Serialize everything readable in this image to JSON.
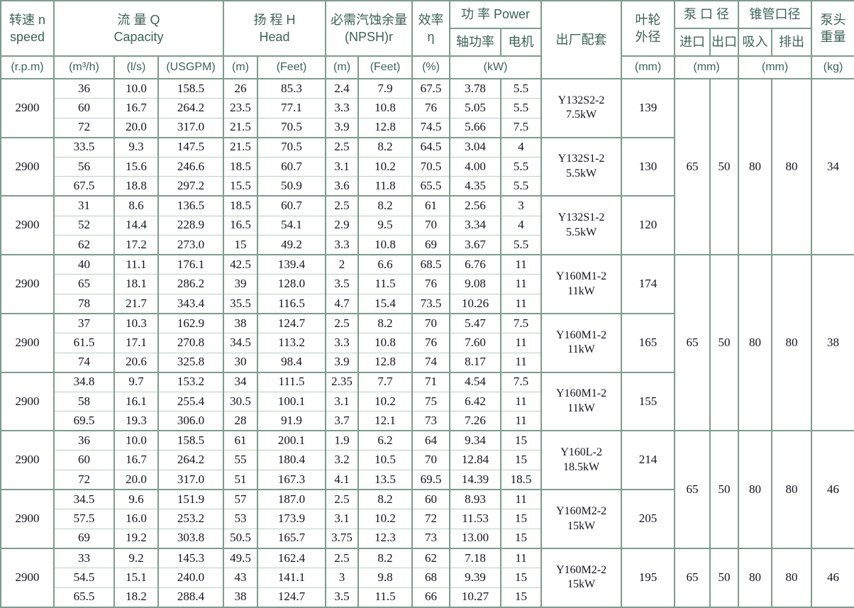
{
  "table": {
    "header": {
      "speed": {
        "line1": "转速 n",
        "line2": "speed",
        "unit": "(r.p.m)"
      },
      "capacity": {
        "line1": "流 量 Q",
        "line2": "Capacity",
        "units": [
          "(m³/h)",
          "(l/s)",
          "(USGPM)"
        ]
      },
      "head": {
        "line1": "扬 程 H",
        "line2": "Head",
        "units": [
          "(m)",
          "(Feet)"
        ]
      },
      "npsh": {
        "line1": "必需汽蚀余量",
        "line2": "(NPSH)r",
        "units": [
          "(m)",
          "(Feet)"
        ]
      },
      "efficiency": {
        "line1": "效率",
        "line2": "η",
        "unit": "(%)"
      },
      "power": {
        "label": "功 率 Power",
        "sub": [
          "轴功率",
          "电机"
        ],
        "unit": "(kW)"
      },
      "model": {
        "label": "出厂配套"
      },
      "impeller": {
        "line1": "叶轮",
        "line2": "外径",
        "unit": "(mm)"
      },
      "pump_ports": {
        "label": "泵 口 径",
        "sub": [
          "进口",
          "出口"
        ],
        "unit": "(mm)"
      },
      "cone_ports": {
        "label": "锥管口径",
        "sub": [
          "吸入",
          "排出"
        ],
        "unit": "(mm)"
      },
      "weight": {
        "line1": "泵头",
        "line2": "重量",
        "unit": "(kg)"
      }
    },
    "columns": [
      "m3h",
      "ls",
      "usgpm",
      "head_m",
      "head_feet",
      "npsh_m",
      "npsh_feet",
      "efficiency",
      "shaft_power",
      "motor_power"
    ],
    "groups": [
      {
        "speed": "2900",
        "model": [
          "Y132S2-2",
          "7.5kW"
        ],
        "impeller": "139",
        "rows": [
          [
            "36",
            "10.0",
            "158.5",
            "26",
            "85.3",
            "2.4",
            "7.9",
            "67.5",
            "3.78",
            "5.5"
          ],
          [
            "60",
            "16.7",
            "264.2",
            "23.5",
            "77.1",
            "3.3",
            "10.8",
            "76",
            "5.05",
            "5.5"
          ],
          [
            "72",
            "20.0",
            "317.0",
            "21.5",
            "70.5",
            "3.9",
            "12.8",
            "74.5",
            "5.66",
            "7.5"
          ]
        ]
      },
      {
        "speed": "2900",
        "model": [
          "Y132S1-2",
          "5.5kW"
        ],
        "impeller": "130",
        "rows": [
          [
            "33.5",
            "9.3",
            "147.5",
            "21.5",
            "70.5",
            "2.5",
            "8.2",
            "64.5",
            "3.04",
            "4"
          ],
          [
            "56",
            "15.6",
            "246.6",
            "18.5",
            "60.7",
            "3.1",
            "10.2",
            "70.5",
            "4.00",
            "5.5"
          ],
          [
            "67.5",
            "18.8",
            "297.2",
            "15.5",
            "50.9",
            "3.6",
            "11.8",
            "65.5",
            "4.35",
            "5.5"
          ]
        ]
      },
      {
        "speed": "2900",
        "model": [
          "Y132S1-2",
          "5.5kW"
        ],
        "impeller": "120",
        "rows": [
          [
            "31",
            "8.6",
            "136.5",
            "18.5",
            "60.7",
            "2.5",
            "8.2",
            "61",
            "2.56",
            "3"
          ],
          [
            "52",
            "14.4",
            "228.9",
            "16.5",
            "54.1",
            "2.9",
            "9.5",
            "70",
            "3.34",
            "4"
          ],
          [
            "62",
            "17.2",
            "273.0",
            "15",
            "49.2",
            "3.3",
            "10.8",
            "69",
            "3.67",
            "5.5"
          ]
        ]
      },
      {
        "speed": "2900",
        "model": [
          "Y160M1-2",
          "11kW"
        ],
        "impeller": "174",
        "rows": [
          [
            "40",
            "11.1",
            "176.1",
            "42.5",
            "139.4",
            "2",
            "6.6",
            "68.5",
            "6.76",
            "11"
          ],
          [
            "65",
            "18.1",
            "286.2",
            "39",
            "128.0",
            "3.5",
            "11.5",
            "76",
            "9.08",
            "11"
          ],
          [
            "78",
            "21.7",
            "343.4",
            "35.5",
            "116.5",
            "4.7",
            "15.4",
            "73.5",
            "10.26",
            "11"
          ]
        ]
      },
      {
        "speed": "2900",
        "model": [
          "Y160M1-2",
          "11kW"
        ],
        "impeller": "165",
        "rows": [
          [
            "37",
            "10.3",
            "162.9",
            "38",
            "124.7",
            "2.5",
            "8.2",
            "70",
            "5.47",
            "7.5"
          ],
          [
            "61.5",
            "17.1",
            "270.8",
            "34.5",
            "113.2",
            "3.3",
            "10.8",
            "76",
            "7.60",
            "11"
          ],
          [
            "74",
            "20.6",
            "325.8",
            "30",
            "98.4",
            "3.9",
            "12.8",
            "74",
            "8.17",
            "11"
          ]
        ]
      },
      {
        "speed": "2900",
        "model": [
          "Y160M1-2",
          "11kW"
        ],
        "impeller": "155",
        "rows": [
          [
            "34.8",
            "9.7",
            "153.2",
            "34",
            "111.5",
            "2.35",
            "7.7",
            "71",
            "4.54",
            "7.5"
          ],
          [
            "58",
            "16.1",
            "255.4",
            "30.5",
            "100.1",
            "3.1",
            "10.2",
            "75",
            "6.42",
            "11"
          ],
          [
            "69.5",
            "19.3",
            "306.0",
            "28",
            "91.9",
            "3.7",
            "12.1",
            "73",
            "7.26",
            "11"
          ]
        ]
      },
      {
        "speed": "2900",
        "model": [
          "Y160L-2",
          "18.5kW"
        ],
        "impeller": "214",
        "rows": [
          [
            "36",
            "10.0",
            "158.5",
            "61",
            "200.1",
            "1.9",
            "6.2",
            "64",
            "9.34",
            "15"
          ],
          [
            "60",
            "16.7",
            "264.2",
            "55",
            "180.4",
            "3.2",
            "10.5",
            "70",
            "12.84",
            "15"
          ],
          [
            "72",
            "20.0",
            "317.0",
            "51",
            "167.3",
            "4.1",
            "13.5",
            "69.5",
            "14.39",
            "18.5"
          ]
        ]
      },
      {
        "speed": "2900",
        "model": [
          "Y160M2-2",
          "15kW"
        ],
        "impeller": "205",
        "rows": [
          [
            "34.5",
            "9.6",
            "151.9",
            "57",
            "187.0",
            "2.5",
            "8.2",
            "60",
            "8.93",
            "11"
          ],
          [
            "57.5",
            "16.0",
            "253.2",
            "53",
            "173.9",
            "3.1",
            "10.2",
            "72",
            "11.53",
            "15"
          ],
          [
            "69",
            "19.2",
            "303.8",
            "50.5",
            "165.7",
            "3.75",
            "12.3",
            "73",
            "13.00",
            "15"
          ]
        ]
      },
      {
        "speed": "2900",
        "model": [
          "Y160M2-2",
          "15kW"
        ],
        "impeller": "195",
        "rows": [
          [
            "33",
            "9.2",
            "145.3",
            "49.5",
            "162.4",
            "2.5",
            "8.2",
            "62",
            "7.18",
            "11"
          ],
          [
            "54.5",
            "15.1",
            "240.0",
            "43",
            "141.1",
            "3",
            "9.8",
            "68",
            "9.39",
            "15"
          ],
          [
            "65.5",
            "18.2",
            "288.4",
            "38",
            "124.7",
            "3.5",
            "11.5",
            "66",
            "10.27",
            "15"
          ]
        ]
      }
    ],
    "port_blocks": [
      {
        "span_groups": 3,
        "inlet": "65",
        "outlet": "50",
        "suction": "80",
        "discharge": "80",
        "weight": "34"
      },
      {
        "span_groups": 3,
        "inlet": "65",
        "outlet": "50",
        "suction": "80",
        "discharge": "80",
        "weight": "38"
      },
      {
        "span_groups": 2,
        "inlet": "65",
        "outlet": "50",
        "suction": "80",
        "discharge": "80",
        "weight": "46"
      },
      {
        "span_groups": 1,
        "inlet": "65",
        "outlet": "50",
        "suction": "80",
        "discharge": "80",
        "weight": "46"
      }
    ],
    "colors": {
      "border": "#7d9c8d",
      "header_text": "#3c6257",
      "body_text": "#12121f"
    }
  }
}
